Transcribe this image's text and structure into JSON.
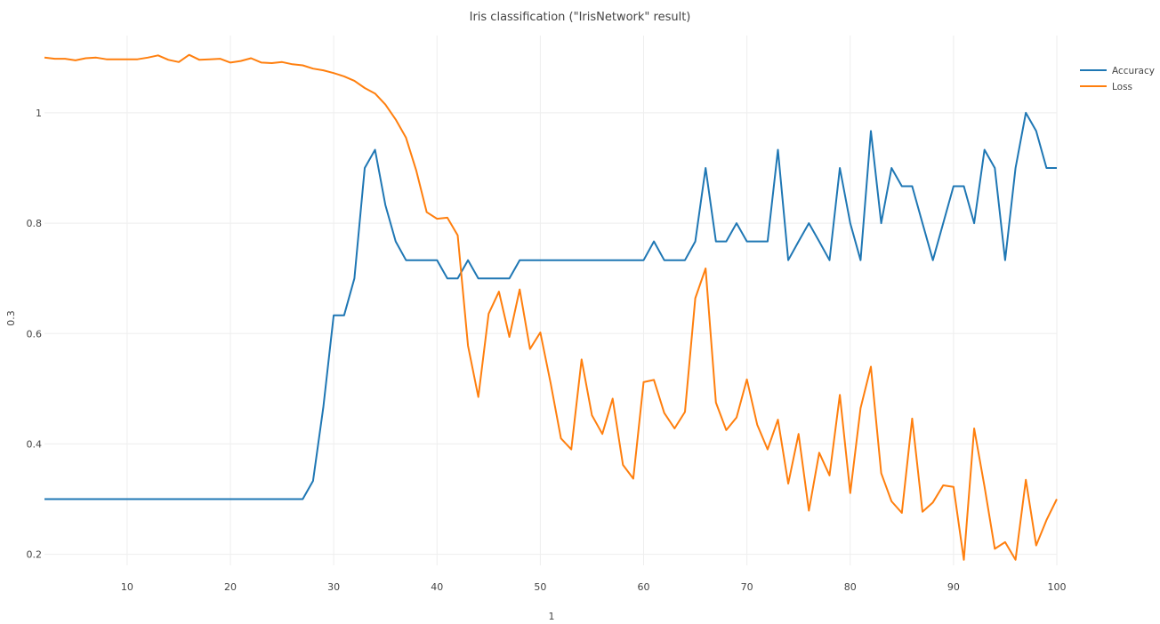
{
  "chart_data": {
    "type": "line",
    "title": "Iris classification (\"IrisNetwork\" result)",
    "xlabel": "1",
    "ylabel": "0.3",
    "xlim": [
      2,
      100
    ],
    "ylim": [
      0.18,
      1.14
    ],
    "x_ticks": [
      10,
      20,
      30,
      40,
      50,
      60,
      70,
      80,
      90,
      100
    ],
    "y_ticks": [
      0.2,
      0.4,
      0.6,
      0.8,
      1
    ],
    "grid": true,
    "legend_position": "top-right",
    "x_start": 2,
    "series": [
      {
        "name": "Accuracy",
        "color": "#1f77b4",
        "values": [
          0.3,
          0.3,
          0.3,
          0.3,
          0.3,
          0.3,
          0.3,
          0.3,
          0.3,
          0.3,
          0.3,
          0.3,
          0.3,
          0.3,
          0.3,
          0.3,
          0.3,
          0.3,
          0.3,
          0.3,
          0.3,
          0.3,
          0.3,
          0.3,
          0.3,
          0.3,
          0.333,
          0.467,
          0.633,
          0.633,
          0.7,
          0.9,
          0.933,
          0.833,
          0.767,
          0.733,
          0.733,
          0.733,
          0.733,
          0.7,
          0.7,
          0.733,
          0.7,
          0.7,
          0.7,
          0.7,
          0.733,
          0.733,
          0.733,
          0.733,
          0.733,
          0.733,
          0.733,
          0.733,
          0.733,
          0.733,
          0.733,
          0.733,
          0.733,
          0.767,
          0.733,
          0.733,
          0.733,
          0.767,
          0.9,
          0.767,
          0.767,
          0.8,
          0.767,
          0.767,
          0.767,
          0.933,
          0.733,
          0.767,
          0.8,
          0.767,
          0.733,
          0.9,
          0.8,
          0.733,
          0.967,
          0.8,
          0.9,
          0.867,
          0.867,
          0.8,
          0.733,
          0.8,
          0.867,
          0.867,
          0.8,
          0.933,
          0.9,
          0.733,
          0.9,
          1.0,
          0.967,
          0.9,
          0.9
        ]
      },
      {
        "name": "Loss",
        "color": "#ff7f0e",
        "values": [
          1.1,
          1.098,
          1.098,
          1.095,
          1.099,
          1.1,
          1.097,
          1.097,
          1.097,
          1.097,
          1.1,
          1.104,
          1.096,
          1.092,
          1.105,
          1.096,
          1.097,
          1.098,
          1.091,
          1.094,
          1.099,
          1.091,
          1.09,
          1.092,
          1.088,
          1.086,
          1.08,
          1.077,
          1.072,
          1.066,
          1.058,
          1.045,
          1.035,
          1.015,
          0.988,
          0.955,
          0.895,
          0.82,
          0.808,
          0.81,
          0.778,
          0.578,
          0.485,
          0.636,
          0.676,
          0.594,
          0.68,
          0.572,
          0.602,
          0.51,
          0.41,
          0.39,
          0.553,
          0.452,
          0.418,
          0.482,
          0.362,
          0.337,
          0.512,
          0.516,
          0.456,
          0.428,
          0.458,
          0.664,
          0.718,
          0.475,
          0.425,
          0.448,
          0.517,
          0.435,
          0.39,
          0.444,
          0.328,
          0.418,
          0.279,
          0.384,
          0.343,
          0.489,
          0.311,
          0.465,
          0.54,
          0.347,
          0.296,
          0.275,
          0.446,
          0.277,
          0.294,
          0.325,
          0.322,
          0.19,
          0.428,
          0.323,
          0.21,
          0.222,
          0.19,
          0.335,
          0.216,
          0.262,
          0.3
        ]
      }
    ]
  }
}
